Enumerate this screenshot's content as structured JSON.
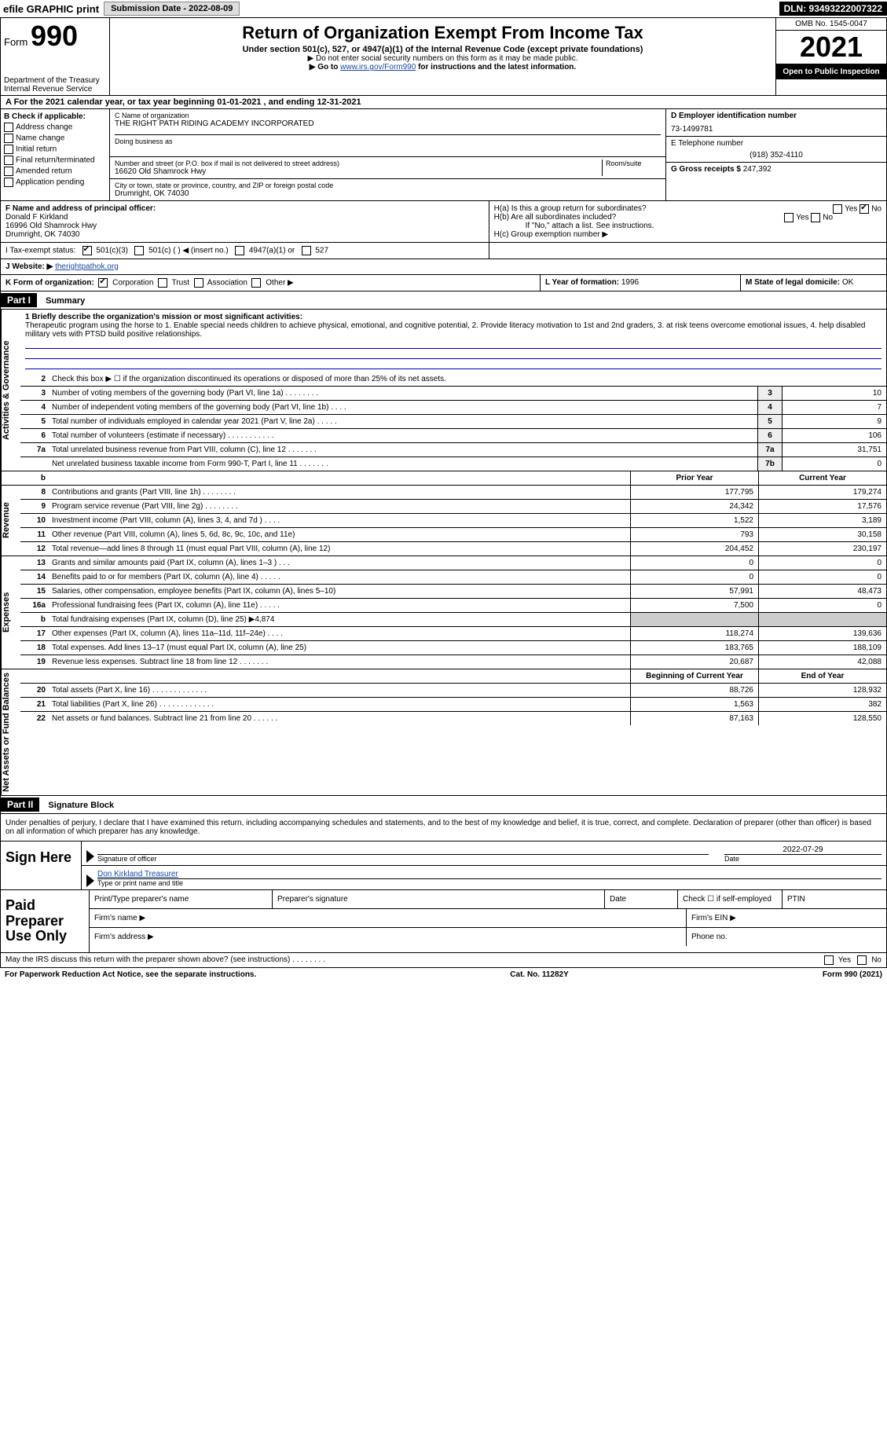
{
  "topbar": {
    "efile": "efile GRAPHIC print",
    "submission_btn": "Submission Date - 2022-08-09",
    "dln": "DLN: 93493222007322"
  },
  "header": {
    "form_label": "Form",
    "form_number": "990",
    "dept": "Department of the Treasury",
    "irs": "Internal Revenue Service",
    "title": "Return of Organization Exempt From Income Tax",
    "subline": "Under section 501(c), 527, or 4947(a)(1) of the Internal Revenue Code (except private foundations)",
    "no_ssn": "▶ Do not enter social security numbers on this form as it may be made public.",
    "goto_pre": "▶ Go to ",
    "goto_link": "www.irs.gov/Form990",
    "goto_post": " for instructions and the latest information.",
    "omb": "OMB No. 1545-0047",
    "year": "2021",
    "open": "Open to Public Inspection"
  },
  "rowA": "A For the 2021 calendar year, or tax year beginning 01-01-2021    , and ending 12-31-2021",
  "B": {
    "hdr": "B Check if applicable:",
    "opts": [
      "Address change",
      "Name change",
      "Initial return",
      "Final return/terminated",
      "Amended return",
      "Application pending"
    ]
  },
  "C": {
    "name_lbl": "C Name of organization",
    "name": "THE RIGHT PATH RIDING ACADEMY INCORPORATED",
    "dba_lbl": "Doing business as",
    "addr_lbl": "Number and street (or P.O. box if mail is not delivered to street address)",
    "room_lbl": "Room/suite",
    "addr": "16620 Old Shamrock Hwy",
    "city_lbl": "City or town, state or province, country, and ZIP or foreign postal code",
    "city": "Drumright, OK  74030"
  },
  "D": {
    "lbl": "D Employer identification number",
    "val": "73-1499781"
  },
  "E": {
    "lbl": "E Telephone number",
    "val": "(918) 352-4110"
  },
  "G": {
    "lbl": "G Gross receipts $",
    "val": "247,392"
  },
  "F": {
    "lbl": "F  Name and address of principal officer:",
    "name": "Donald F Kirkland",
    "addr1": "16996 Old Shamrock Hwy",
    "addr2": "Drumright, OK  74030"
  },
  "H": {
    "a": "H(a)  Is this a group return for subordinates?",
    "b": "H(b)  Are all subordinates included?",
    "b_note": "If \"No,\" attach a list. See instructions.",
    "c": "H(c)  Group exemption number ▶",
    "yes": "Yes",
    "no": "No"
  },
  "I": {
    "lbl": "I   Tax-exempt status:",
    "opts": [
      "501(c)(3)",
      "501(c) (  ) ◀ (insert no.)",
      "4947(a)(1) or",
      "527"
    ]
  },
  "J": {
    "lbl": "J   Website: ▶",
    "val": "therightpathok.org"
  },
  "K": {
    "lbl": "K Form of organization:",
    "opts": [
      "Corporation",
      "Trust",
      "Association",
      "Other ▶"
    ]
  },
  "L": {
    "lbl": "L Year of formation:",
    "val": "1996"
  },
  "M": {
    "lbl": "M State of legal domicile:",
    "val": "OK"
  },
  "partI": {
    "hdr": "Part I",
    "title": "Summary"
  },
  "mission": {
    "q1": "1  Briefly describe the organization's mission or most significant activities:",
    "text": "Therapeutic program using the horse to 1. Enable special needs children to achieve physical, emotional, and cognitive potential, 2. Provide literacy motivation to 1st and 2nd graders, 3. at risk teens overcome emotional issues, 4. help disabled military vets with PTSD build positive relationships."
  },
  "gov": {
    "q2": "Check this box ▶ ☐  if the organization discontinued its operations or disposed of more than 25% of its net assets.",
    "rows": [
      {
        "n": "3",
        "t": "Number of voting members of the governing body (Part VI, line 1a)   .    .    .    .    .    .    .    .",
        "box": "3",
        "v": "10"
      },
      {
        "n": "4",
        "t": "Number of independent voting members of the governing body (Part VI, line 1b)   .    .    .    .",
        "box": "4",
        "v": "7"
      },
      {
        "n": "5",
        "t": "Total number of individuals employed in calendar year 2021 (Part V, line 2a)   .    .    .    .    .",
        "box": "5",
        "v": "9"
      },
      {
        "n": "6",
        "t": "Total number of volunteers (estimate if necessary)    .    .    .    .    .    .    .    .    .    .    .",
        "box": "6",
        "v": "106"
      },
      {
        "n": "7a",
        "t": "Total unrelated business revenue from Part VIII, column (C), line 12   .    .    .    .    .    .    .",
        "box": "7a",
        "v": "31,751"
      },
      {
        "n": "",
        "t": "Net unrelated business taxable income from Form 990-T, Part I, line 11   .    .    .    .    .    .    .",
        "box": "7b",
        "v": "0"
      }
    ]
  },
  "rev": {
    "hdr_prior": "Prior Year",
    "hdr_curr": "Current Year",
    "rows": [
      {
        "n": "8",
        "t": "Contributions and grants (Part VIII, line 1h)   .    .    .    .    .    .    .    .",
        "p": "177,795",
        "c": "179,274"
      },
      {
        "n": "9",
        "t": "Program service revenue (Part VIII, line 2g)   .    .    .    .    .    .    .    .",
        "p": "24,342",
        "c": "17,576"
      },
      {
        "n": "10",
        "t": "Investment income (Part VIII, column (A), lines 3, 4, and 7d )   .    .    .    .",
        "p": "1,522",
        "c": "3,189"
      },
      {
        "n": "11",
        "t": "Other revenue (Part VIII, column (A), lines 5, 6d, 8c, 9c, 10c, and 11e)",
        "p": "793",
        "c": "30,158"
      },
      {
        "n": "12",
        "t": "Total revenue—add lines 8 through 11 (must equal Part VIII, column (A), line 12)",
        "p": "204,452",
        "c": "230,197"
      }
    ]
  },
  "exp": {
    "rows": [
      {
        "n": "13",
        "t": "Grants and similar amounts paid (Part IX, column (A), lines 1–3 )   .    .    .",
        "p": "0",
        "c": "0"
      },
      {
        "n": "14",
        "t": "Benefits paid to or for members (Part IX, column (A), line 4)   .    .    .    .    .",
        "p": "0",
        "c": "0"
      },
      {
        "n": "15",
        "t": "Salaries, other compensation, employee benefits (Part IX, column (A), lines 5–10)",
        "p": "57,991",
        "c": "48,473"
      },
      {
        "n": "16a",
        "t": "Professional fundraising fees (Part IX, column (A), line 11e)   .    .    .    .    .",
        "p": "7,500",
        "c": "0"
      },
      {
        "n": "b",
        "t": "Total fundraising expenses (Part IX, column (D), line 25) ▶4,874",
        "p": "",
        "c": ""
      },
      {
        "n": "17",
        "t": "Other expenses (Part IX, column (A), lines 11a–11d, 11f–24e)   .    .    .    .",
        "p": "118,274",
        "c": "139,636"
      },
      {
        "n": "18",
        "t": "Total expenses. Add lines 13–17 (must equal Part IX, column (A), line 25)",
        "p": "183,765",
        "c": "188,109"
      },
      {
        "n": "19",
        "t": "Revenue less expenses. Subtract line 18 from line 12   .    .    .    .    .    .    .",
        "p": "20,687",
        "c": "42,088"
      }
    ]
  },
  "net": {
    "hdr_beg": "Beginning of Current Year",
    "hdr_end": "End of Year",
    "rows": [
      {
        "n": "20",
        "t": "Total assets (Part X, line 16)   .    .    .    .    .    .    .    .    .    .    .    .    .",
        "p": "88,726",
        "c": "128,932"
      },
      {
        "n": "21",
        "t": "Total liabilities (Part X, line 26)   .    .    .    .    .    .    .    .    .    .    .    .    .",
        "p": "1,563",
        "c": "382"
      },
      {
        "n": "22",
        "t": "Net assets or fund balances. Subtract line 21 from line 20   .    .    .    .    .    .",
        "p": "87,163",
        "c": "128,550"
      }
    ]
  },
  "partII": {
    "hdr": "Part II",
    "title": "Signature Block"
  },
  "sig_decl": "Under penalties of perjury, I declare that I have examined this return, including accompanying schedules and statements, and to the best of my knowledge and belief, it is true, correct, and complete. Declaration of preparer (other than officer) is based on all information of which preparer has any knowledge.",
  "sign": {
    "here": "Sign Here",
    "officer_sig": "Signature of officer",
    "date": "2022-07-29",
    "date_lbl": "Date",
    "name": "Don Kirkland  Treasurer",
    "name_lbl": "Type or print name and title"
  },
  "paid": {
    "lbl": "Paid Preparer Use Only",
    "p_name": "Print/Type preparer's name",
    "p_sig": "Preparer's signature",
    "p_date": "Date",
    "p_check": "Check ☐ if self-employed",
    "ptin": "PTIN",
    "firm_name": "Firm's name    ▶",
    "firm_ein": "Firm's EIN ▶",
    "firm_addr": "Firm's address ▶",
    "phone": "Phone no."
  },
  "footer": {
    "may_discuss": "May the IRS discuss this return with the preparer shown above? (see instructions)   .    .    .    .    .    .    .    .",
    "yes": "Yes",
    "no": "No",
    "paperwork": "For Paperwork Reduction Act Notice, see the separate instructions.",
    "cat": "Cat. No. 11282Y",
    "form": "Form 990 (2021)"
  },
  "sidebars": {
    "gov": "Activities & Governance",
    "rev": "Revenue",
    "exp": "Expenses",
    "net": "Net Assets or Fund Balances"
  }
}
